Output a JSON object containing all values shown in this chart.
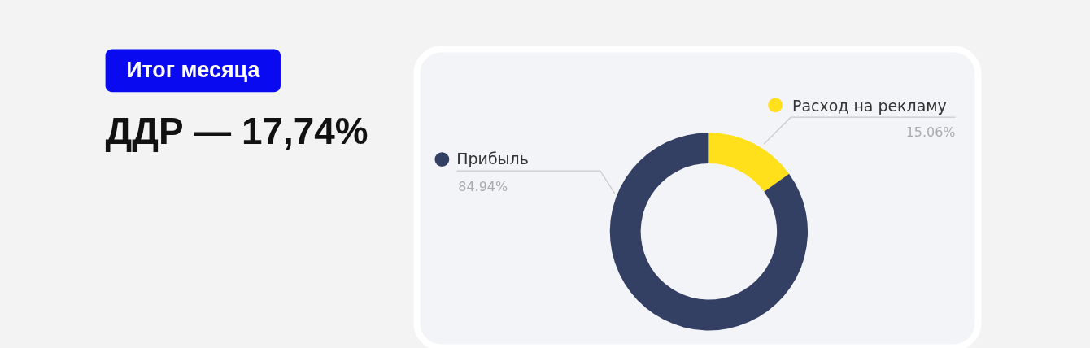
{
  "chart_data": {
    "type": "donut",
    "title": "ДДР — 17,74%",
    "annotations": [
      "Итог месяца"
    ],
    "categories": [
      "Расход на рекламу",
      "Прибыль"
    ],
    "values": [
      15.06,
      84.94
    ],
    "colors": [
      "#ffe01a",
      "#333f63"
    ],
    "value_labels": [
      "15.06%",
      "84.94%"
    ],
    "legend": "top"
  }
}
